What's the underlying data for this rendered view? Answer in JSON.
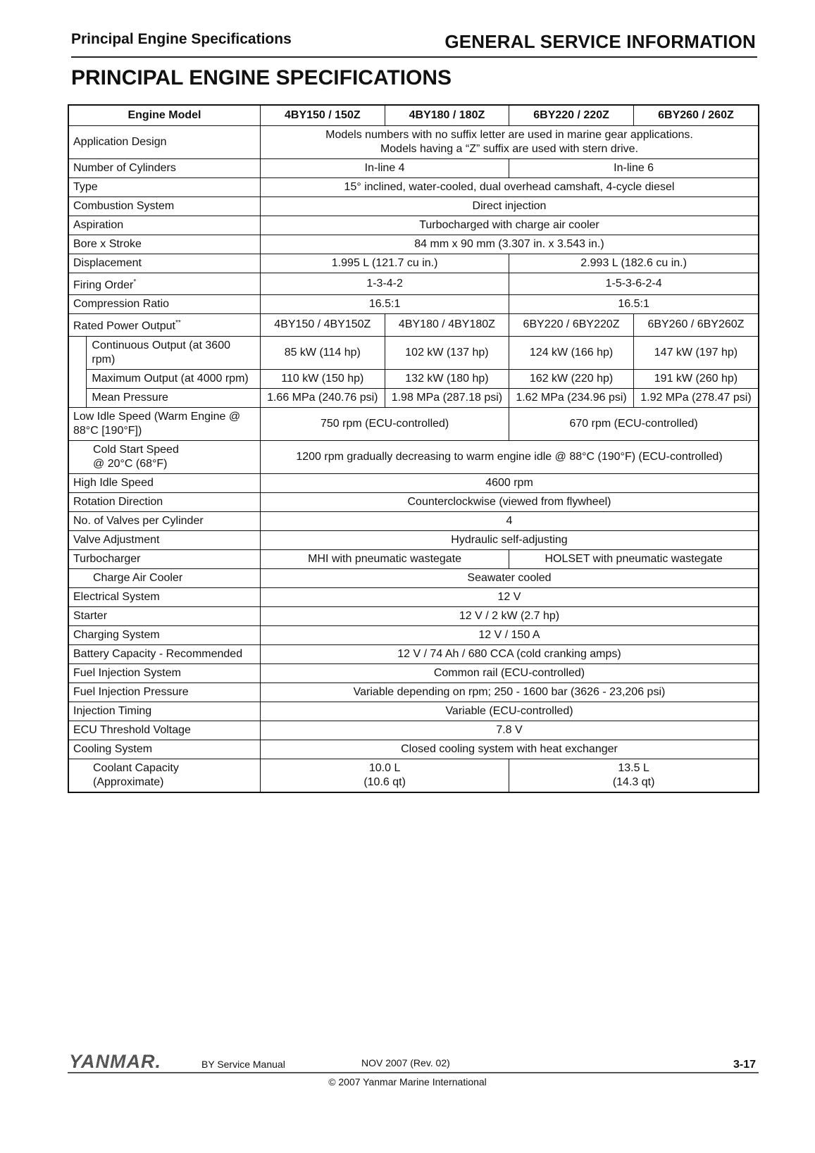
{
  "header": {
    "section": "Principal Engine Specifications",
    "chapter": "GENERAL SERVICE INFORMATION"
  },
  "title": "PRINCIPAL ENGINE SPECIFICATIONS",
  "table": {
    "columns": [
      "Engine Model",
      "4BY150 / 150Z",
      "4BY180 / 180Z",
      "6BY220 / 220Z",
      "6BY260 / 260Z"
    ],
    "rows": [
      {
        "label": "Application Design",
        "indent": "none",
        "cells": [
          {
            "text": "Models numbers with no suffix letter are used in marine gear applications.\nModels having a “Z” suffix are used with stern drive.",
            "span": 4
          }
        ]
      },
      {
        "label": "Number of Cylinders",
        "indent": "none",
        "cells": [
          {
            "text": "In-line 4",
            "span": 2
          },
          {
            "text": "In-line 6",
            "span": 2
          }
        ]
      },
      {
        "label": "Type",
        "indent": "none",
        "cells": [
          {
            "text": "15° inclined, water-cooled, dual overhead camshaft, 4-cycle diesel",
            "span": 4
          }
        ]
      },
      {
        "label": "Combustion System",
        "indent": "none",
        "cells": [
          {
            "text": "Direct injection",
            "span": 4
          }
        ]
      },
      {
        "label": "Aspiration",
        "indent": "none",
        "cells": [
          {
            "text": "Turbocharged with charge air cooler",
            "span": 4
          }
        ]
      },
      {
        "label": "Bore x Stroke",
        "indent": "none",
        "cells": [
          {
            "text": "84 mm x 90 mm (3.307 in. x 3.543 in.)",
            "span": 4
          }
        ]
      },
      {
        "label": "Displacement",
        "indent": "none",
        "cells": [
          {
            "text": "1.995 L (121.7 cu in.)",
            "span": 2
          },
          {
            "text": "2.993 L (182.6 cu in.)",
            "span": 2
          }
        ]
      },
      {
        "label": "Firing Order",
        "sup": "*",
        "indent": "none",
        "cells": [
          {
            "text": "1-3-4-2",
            "span": 2
          },
          {
            "text": "1-5-3-6-2-4",
            "span": 2
          }
        ]
      },
      {
        "label": "Compression Ratio",
        "indent": "none",
        "cells": [
          {
            "text": "16.5:1",
            "span": 2
          },
          {
            "text": "16.5:1",
            "span": 2
          }
        ]
      },
      {
        "label": "Rated Power Output",
        "sup": "**",
        "indent": "none",
        "cells": [
          {
            "text": "4BY150 / 4BY150Z",
            "span": 1
          },
          {
            "text": "4BY180 / 4BY180Z",
            "span": 1
          },
          {
            "text": "6BY220 / 6BY220Z",
            "span": 1
          },
          {
            "text": "6BY260 / 6BY260Z",
            "span": 1
          }
        ]
      },
      {
        "label": "Continuous Output (at 3600 rpm)",
        "indent": "sub",
        "cells": [
          {
            "text": "85 kW (114 hp)",
            "span": 1
          },
          {
            "text": "102 kW (137 hp)",
            "span": 1
          },
          {
            "text": "124 kW (166 hp)",
            "span": 1
          },
          {
            "text": "147 kW (197 hp)",
            "span": 1
          }
        ]
      },
      {
        "label": "Maximum Output (at 4000 rpm)",
        "indent": "sub",
        "cells": [
          {
            "text": "110 kW (150 hp)",
            "span": 1
          },
          {
            "text": "132 kW (180 hp)",
            "span": 1
          },
          {
            "text": "162 kW (220 hp)",
            "span": 1
          },
          {
            "text": "191 kW (260 hp)",
            "span": 1
          }
        ]
      },
      {
        "label": "Mean Pressure",
        "indent": "sub",
        "cells": [
          {
            "text": "1.66 MPa (240.76 psi)",
            "span": 1
          },
          {
            "text": "1.98 MPa (287.18 psi)",
            "span": 1
          },
          {
            "text": "1.62 MPa (234.96 psi)",
            "span": 1
          },
          {
            "text": "1.92 MPa (278.47 psi)",
            "span": 1
          }
        ]
      },
      {
        "label": "Low Idle Speed (Warm Engine @\n88°C [190°F])",
        "indent": "none",
        "cells": [
          {
            "text": "750 rpm (ECU-controlled)",
            "span": 2
          },
          {
            "text": "670 rpm (ECU-controlled)",
            "span": 2
          }
        ]
      },
      {
        "label": "Cold Start Speed\n@ 20°C (68°F)",
        "indent": "text",
        "cells": [
          {
            "text": "1200 rpm gradually decreasing to warm engine idle @ 88°C (190°F) (ECU-controlled)",
            "span": 4
          }
        ]
      },
      {
        "label": "High Idle Speed",
        "indent": "none",
        "cells": [
          {
            "text": "4600 rpm",
            "span": 4
          }
        ]
      },
      {
        "label": "Rotation Direction",
        "indent": "none",
        "cells": [
          {
            "text": "Counterclockwise (viewed from flywheel)",
            "span": 4
          }
        ]
      },
      {
        "label": "No. of Valves per Cylinder",
        "indent": "none",
        "cells": [
          {
            "text": "4",
            "span": 4
          }
        ]
      },
      {
        "label": "Valve Adjustment",
        "indent": "none",
        "cells": [
          {
            "text": "Hydraulic self-adjusting",
            "span": 4
          }
        ]
      },
      {
        "label": "Turbocharger",
        "indent": "none",
        "cells": [
          {
            "text": "MHI with pneumatic wastegate",
            "span": 2
          },
          {
            "text": "HOLSET with pneumatic wastegate",
            "span": 2
          }
        ]
      },
      {
        "label": "Charge Air Cooler",
        "indent": "text",
        "cells": [
          {
            "text": "Seawater cooled",
            "span": 4
          }
        ]
      },
      {
        "label": "Electrical System",
        "indent": "none",
        "cells": [
          {
            "text": "12 V",
            "span": 4
          }
        ]
      },
      {
        "label": "Starter",
        "indent": "none",
        "cells": [
          {
            "text": "12 V / 2 kW (2.7 hp)",
            "span": 4
          }
        ]
      },
      {
        "label": "Charging System",
        "indent": "none",
        "cells": [
          {
            "text": "12 V / 150 A",
            "span": 4
          }
        ]
      },
      {
        "label": "Battery Capacity - Recommended",
        "indent": "none",
        "cells": [
          {
            "text": "12 V / 74 Ah / 680 CCA (cold cranking amps)",
            "span": 4
          }
        ]
      },
      {
        "label": "Fuel Injection System",
        "indent": "none",
        "cells": [
          {
            "text": "Common rail (ECU-controlled)",
            "span": 4
          }
        ]
      },
      {
        "label": "Fuel Injection Pressure",
        "indent": "none",
        "cells": [
          {
            "text": "Variable depending on rpm; 250 - 1600 bar (3626 - 23,206 psi)",
            "span": 4
          }
        ]
      },
      {
        "label": "Injection Timing",
        "indent": "none",
        "cells": [
          {
            "text": "Variable (ECU-controlled)",
            "span": 4
          }
        ]
      },
      {
        "label": "ECU Threshold Voltage",
        "indent": "none",
        "cells": [
          {
            "text": "7.8 V",
            "span": 4
          }
        ]
      },
      {
        "label": "Cooling System",
        "indent": "none",
        "cells": [
          {
            "text": "Closed cooling system with heat exchanger",
            "span": 4
          }
        ]
      },
      {
        "label": "Coolant Capacity\n(Approximate)",
        "indent": "text",
        "cells": [
          {
            "text": "10.0 L\n(10.6 qt)",
            "span": 2
          },
          {
            "text": "13.5 L\n(14.3 qt)",
            "span": 2
          }
        ]
      }
    ]
  },
  "footer": {
    "logo": "YANMAR.",
    "manual": "BY Service Manual",
    "date": "NOV 2007 (Rev. 02)",
    "page": "3-17",
    "copyright": "© 2007 Yanmar Marine International"
  }
}
